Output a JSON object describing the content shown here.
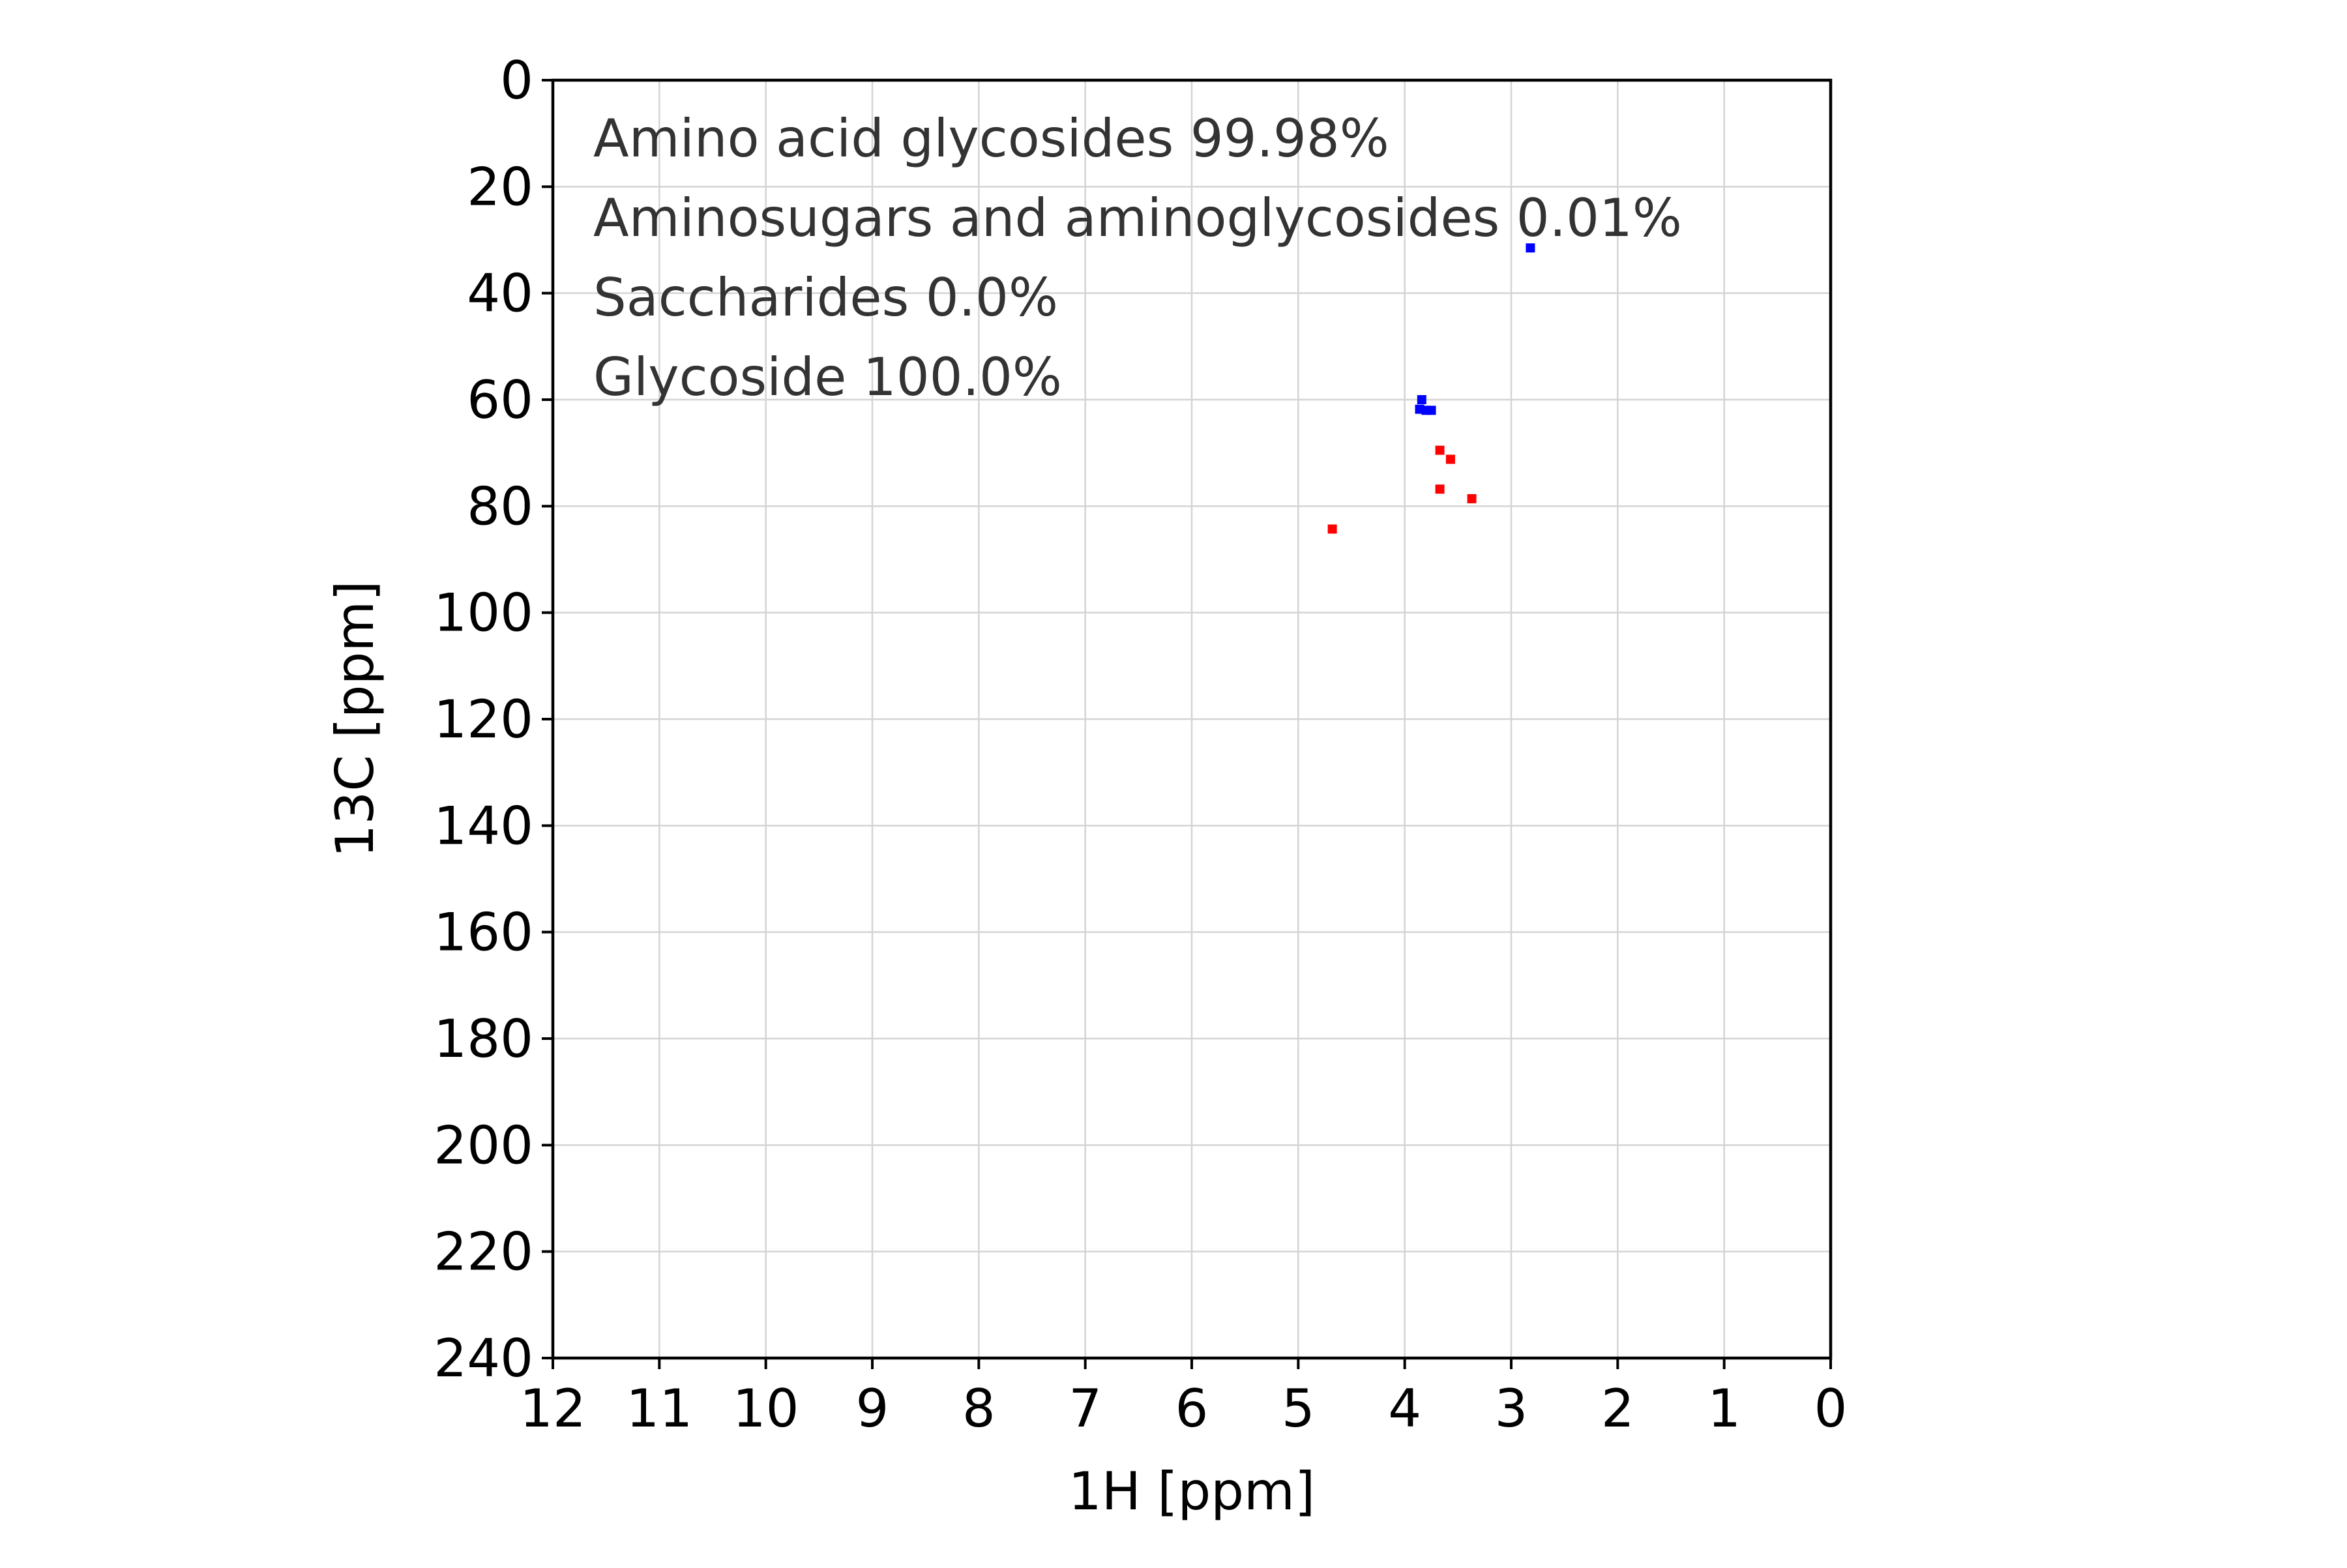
{
  "chart_data": {
    "type": "scatter",
    "xlabel": "1H [ppm]",
    "ylabel": "13C [ppm]",
    "xlim": [
      12,
      0
    ],
    "ylim": [
      240,
      0
    ],
    "x_reversed": true,
    "y_reversed": true,
    "grid": true,
    "x_ticks": [
      "12",
      "11",
      "10",
      "9",
      "8",
      "7",
      "6",
      "5",
      "4",
      "3",
      "2",
      "1",
      "0"
    ],
    "y_ticks": [
      "0",
      "20",
      "40",
      "60",
      "80",
      "100",
      "120",
      "140",
      "160",
      "180",
      "200",
      "220",
      "240"
    ],
    "annotations": [
      "Amino acid glycosides 99.98%",
      "Aminosugars and aminoglycosides 0.01%",
      "Saccharides 0.0%",
      "Glycoside 100.0%"
    ],
    "series": [
      {
        "color": "#0000ff",
        "points": [
          {
            "x": 2.82,
            "y": 31.5
          },
          {
            "x": 3.84,
            "y": 60.0
          },
          {
            "x": 3.86,
            "y": 61.8
          },
          {
            "x": 3.8,
            "y": 62.0
          },
          {
            "x": 3.75,
            "y": 62.0
          }
        ]
      },
      {
        "color": "#ff0000",
        "points": [
          {
            "x": 3.67,
            "y": 69.5
          },
          {
            "x": 3.57,
            "y": 71.2
          },
          {
            "x": 3.67,
            "y": 76.8
          },
          {
            "x": 3.37,
            "y": 78.6
          },
          {
            "x": 4.68,
            "y": 84.3
          }
        ]
      }
    ]
  }
}
